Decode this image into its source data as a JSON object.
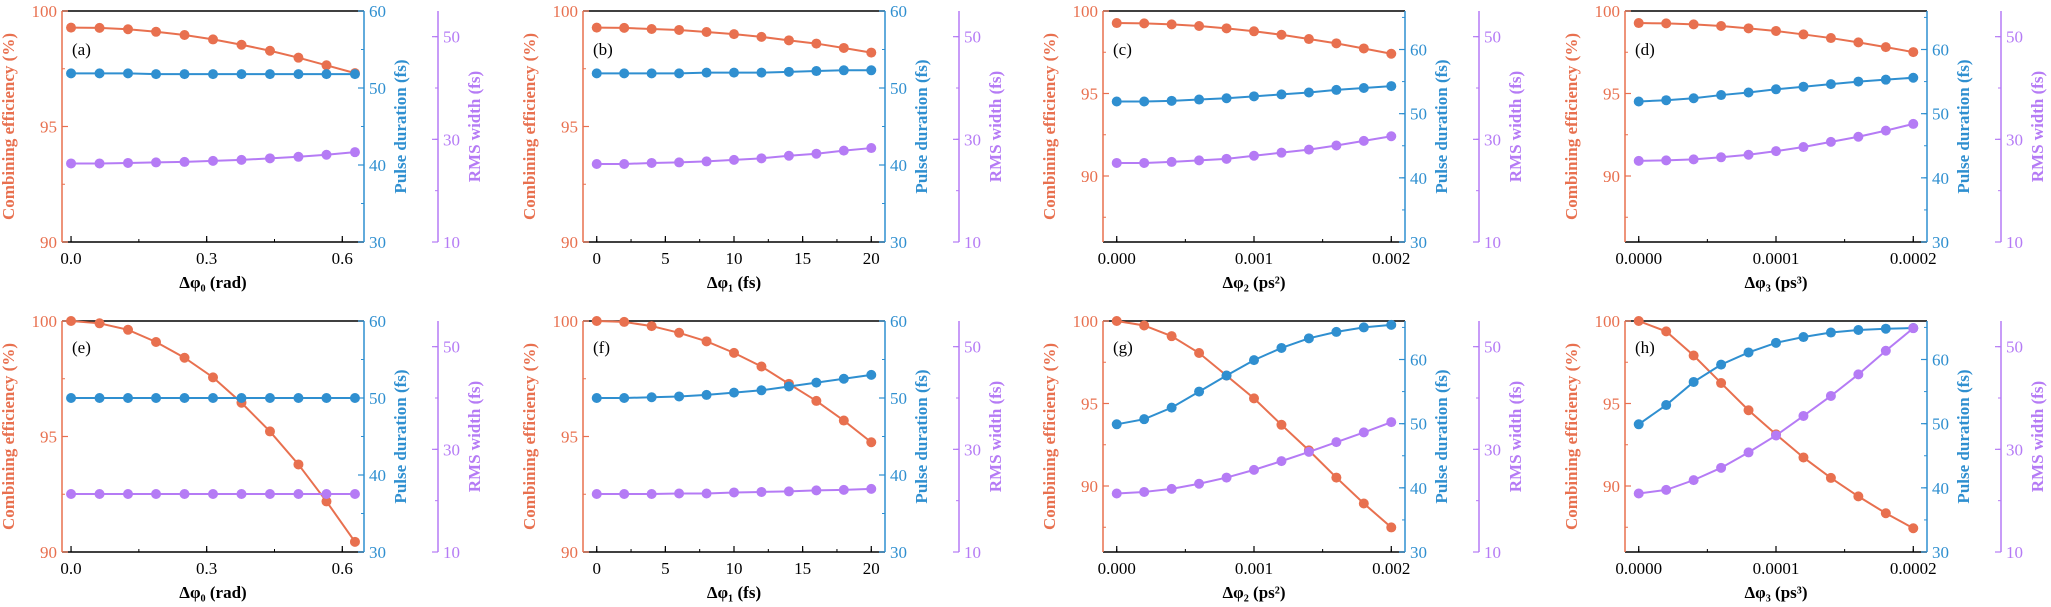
{
  "colors": {
    "efficiency": "#e8704f",
    "pulse": "#2f8fd0",
    "rms": "#b57bf5",
    "frame": "#000000"
  },
  "axis_titles": {
    "efficiency": "Combining efficiency (%)",
    "pulse": "Pulse duration (fs)",
    "rms": "RMS width (fs)"
  },
  "chart_data": [
    {
      "panel": "(a)",
      "type": "line",
      "xlabel": "Δφ₀ (rad)",
      "xlim": [
        -0.02,
        0.648
      ],
      "xticks": [
        "0.0",
        "0.3",
        "0.6"
      ],
      "xminor": 0.15,
      "x": [
        0,
        0.063,
        0.126,
        0.188,
        0.251,
        0.314,
        0.377,
        0.44,
        0.503,
        0.565,
        0.628
      ],
      "efficiency": {
        "ylim": [
          90,
          100
        ],
        "ticks": [
          "90",
          "95",
          "100"
        ],
        "minor": 2.5,
        "values": [
          99.28,
          99.27,
          99.21,
          99.1,
          98.96,
          98.77,
          98.54,
          98.28,
          97.98,
          97.65,
          97.31
        ]
      },
      "pulse": {
        "ylim": [
          30,
          60
        ],
        "ticks": [
          "30",
          "40",
          "50",
          "60"
        ],
        "minor": 5,
        "values": [
          51.9,
          51.9,
          51.9,
          51.8,
          51.8,
          51.8,
          51.8,
          51.8,
          51.8,
          51.8,
          51.8
        ]
      },
      "rms": {
        "ylim": [
          10,
          55
        ],
        "ticks": [
          "10",
          "30",
          "50"
        ],
        "minor": 10,
        "values": [
          25.3,
          25.3,
          25.4,
          25.5,
          25.6,
          25.8,
          26.0,
          26.3,
          26.6,
          27.0,
          27.5
        ]
      }
    },
    {
      "panel": "(b)",
      "type": "line",
      "xlabel": "Δφ₁ (fs)",
      "xlim": [
        -1,
        21
      ],
      "xticks": [
        "0",
        "5",
        "10",
        "15",
        "20"
      ],
      "xminor": 2.5,
      "x": [
        0,
        2,
        4,
        6,
        8,
        10,
        12,
        14,
        16,
        18,
        20
      ],
      "efficiency": {
        "ylim": [
          90,
          100
        ],
        "ticks": [
          "90",
          "95",
          "100"
        ],
        "minor": 2.5,
        "values": [
          99.28,
          99.27,
          99.22,
          99.18,
          99.09,
          99.0,
          98.88,
          98.73,
          98.59,
          98.4,
          98.2
        ]
      },
      "pulse": {
        "ylim": [
          30,
          60
        ],
        "ticks": [
          "30",
          "40",
          "50",
          "60"
        ],
        "minor": 5,
        "values": [
          51.9,
          51.9,
          51.9,
          51.9,
          52.0,
          52.0,
          52.0,
          52.1,
          52.2,
          52.3,
          52.3
        ]
      },
      "rms": {
        "ylim": [
          10,
          55
        ],
        "ticks": [
          "10",
          "30",
          "50"
        ],
        "minor": 10,
        "values": [
          25.2,
          25.2,
          25.4,
          25.5,
          25.7,
          26.0,
          26.3,
          26.8,
          27.2,
          27.8,
          28.3
        ]
      }
    },
    {
      "panel": "(c)",
      "type": "line",
      "xlabel": "Δφ₂ (ps²)",
      "xlim": [
        -0.0001,
        0.0021
      ],
      "xticks": [
        "0.000",
        "0.001",
        "0.002"
      ],
      "xminor": 0.0005,
      "x": [
        0,
        0.0002,
        0.0004,
        0.0006,
        0.0008,
        0.001,
        0.0012,
        0.0014,
        0.0016,
        0.0018,
        0.002
      ],
      "efficiency": {
        "ylim": [
          86,
          100
        ],
        "ticks": [
          "90",
          "95",
          "100"
        ],
        "minor": 2.5,
        "values": [
          99.27,
          99.25,
          99.19,
          99.09,
          98.95,
          98.77,
          98.56,
          98.3,
          98.04,
          97.73,
          97.41
        ]
      },
      "pulse": {
        "ylim": [
          30,
          66
        ],
        "ticks": [
          "30",
          "40",
          "50",
          "60"
        ],
        "minor": 5,
        "values": [
          51.9,
          51.9,
          52.0,
          52.2,
          52.4,
          52.7,
          53.0,
          53.3,
          53.7,
          54.0,
          54.3
        ]
      },
      "rms": {
        "ylim": [
          10,
          55
        ],
        "ticks": [
          "10",
          "30",
          "50"
        ],
        "minor": 10,
        "values": [
          25.4,
          25.4,
          25.6,
          25.9,
          26.2,
          26.8,
          27.4,
          28.0,
          28.8,
          29.7,
          30.6
        ]
      }
    },
    {
      "panel": "(d)",
      "type": "line",
      "xlabel": "Δφ₃ (ps³)",
      "xlim": [
        -1e-05,
        0.00021
      ],
      "xticks": [
        "0.0000",
        "0.0001",
        "0.0002"
      ],
      "xminor": 5e-05,
      "x": [
        0,
        2e-05,
        4e-05,
        6e-05,
        8e-05,
        0.0001,
        0.00012,
        0.00014,
        0.00016,
        0.00018,
        0.0002
      ],
      "efficiency": {
        "ylim": [
          86,
          100
        ],
        "ticks": [
          "90",
          "95",
          "100"
        ],
        "minor": 2.5,
        "values": [
          99.27,
          99.25,
          99.19,
          99.09,
          98.95,
          98.79,
          98.58,
          98.36,
          98.1,
          97.81,
          97.51
        ]
      },
      "pulse": {
        "ylim": [
          30,
          66
        ],
        "ticks": [
          "30",
          "40",
          "50",
          "60"
        ],
        "minor": 5,
        "values": [
          51.9,
          52.1,
          52.4,
          52.9,
          53.3,
          53.8,
          54.2,
          54.6,
          55.0,
          55.3,
          55.6
        ]
      },
      "rms": {
        "ylim": [
          10,
          55
        ],
        "ticks": [
          "10",
          "30",
          "50"
        ],
        "minor": 10,
        "values": [
          25.8,
          25.9,
          26.1,
          26.5,
          27.0,
          27.7,
          28.5,
          29.5,
          30.5,
          31.7,
          33.0
        ]
      }
    },
    {
      "panel": "(e)",
      "type": "line",
      "xlabel": "Δφ₀ (rad)",
      "xlim": [
        -0.02,
        0.648
      ],
      "xticks": [
        "0.0",
        "0.3",
        "0.6"
      ],
      "xminor": 0.15,
      "x": [
        0,
        0.063,
        0.126,
        0.188,
        0.251,
        0.314,
        0.377,
        0.44,
        0.503,
        0.565,
        0.628
      ],
      "efficiency": {
        "ylim": [
          90,
          100
        ],
        "ticks": [
          "90",
          "95",
          "100"
        ],
        "minor": 2.5,
        "values": [
          100,
          99.9,
          99.62,
          99.09,
          98.41,
          97.56,
          96.46,
          95.22,
          93.79,
          92.19,
          90.44
        ]
      },
      "pulse": {
        "ylim": [
          30,
          60
        ],
        "ticks": [
          "30",
          "40",
          "50",
          "60"
        ],
        "minor": 5,
        "values": [
          50,
          50,
          50,
          50,
          50,
          50,
          50,
          50,
          50,
          50,
          50
        ]
      },
      "rms": {
        "ylim": [
          10,
          55
        ],
        "ticks": [
          "10",
          "30",
          "50"
        ],
        "minor": 10,
        "values": [
          21.3,
          21.3,
          21.3,
          21.3,
          21.3,
          21.3,
          21.3,
          21.3,
          21.3,
          21.3,
          21.3
        ]
      }
    },
    {
      "panel": "(f)",
      "type": "line",
      "xlabel": "Δφ₁ (fs)",
      "xlim": [
        -1,
        21
      ],
      "xticks": [
        "0",
        "5",
        "10",
        "15",
        "20"
      ],
      "xminor": 2.5,
      "x": [
        0,
        2,
        4,
        6,
        8,
        10,
        12,
        14,
        16,
        18,
        20
      ],
      "efficiency": {
        "ylim": [
          90,
          100
        ],
        "ticks": [
          "90",
          "95",
          "100"
        ],
        "minor": 2.5,
        "values": [
          100,
          99.96,
          99.78,
          99.49,
          99.12,
          98.62,
          98.03,
          97.28,
          96.54,
          95.69,
          94.75
        ]
      },
      "pulse": {
        "ylim": [
          30,
          60
        ],
        "ticks": [
          "30",
          "40",
          "50",
          "60"
        ],
        "minor": 5,
        "values": [
          50,
          50,
          50.1,
          50.2,
          50.4,
          50.7,
          51.0,
          51.5,
          52.0,
          52.5,
          53.0
        ]
      },
      "rms": {
        "ylim": [
          10,
          55
        ],
        "ticks": [
          "10",
          "30",
          "50"
        ],
        "minor": 10,
        "values": [
          21.3,
          21.3,
          21.3,
          21.4,
          21.4,
          21.6,
          21.7,
          21.8,
          22.0,
          22.1,
          22.3
        ]
      }
    },
    {
      "panel": "(g)",
      "type": "line",
      "xlabel": "Δφ₂ (ps²)",
      "xlim": [
        -0.0001,
        0.0021
      ],
      "xticks": [
        "0.000",
        "0.001",
        "0.002"
      ],
      "xminor": 0.0005,
      "x": [
        0,
        0.0002,
        0.0004,
        0.0006,
        0.0008,
        0.001,
        0.0012,
        0.0014,
        0.0016,
        0.0018,
        0.002
      ],
      "efficiency": {
        "ylim": [
          86,
          100
        ],
        "ticks": [
          "90",
          "95",
          "100"
        ],
        "minor": 2.5,
        "values": [
          100,
          99.73,
          99.08,
          98.06,
          96.69,
          95.31,
          93.71,
          92.16,
          90.51,
          88.94,
          87.49
        ]
      },
      "pulse": {
        "ylim": [
          30,
          66
        ],
        "ticks": [
          "30",
          "40",
          "50",
          "60"
        ],
        "minor": 5,
        "values": [
          49.9,
          50.7,
          52.5,
          55.0,
          57.5,
          59.9,
          61.8,
          63.3,
          64.3,
          65.0,
          65.4
        ]
      },
      "rms": {
        "ylim": [
          10,
          55
        ],
        "ticks": [
          "10",
          "30",
          "50"
        ],
        "minor": 10,
        "values": [
          21.4,
          21.7,
          22.3,
          23.3,
          24.5,
          26.0,
          27.7,
          29.5,
          31.4,
          33.3,
          35.3
        ]
      }
    },
    {
      "panel": "(h)",
      "type": "line",
      "xlabel": "Δφ₃ (ps³)",
      "xlim": [
        -1e-05,
        0.00021
      ],
      "xticks": [
        "0.0000",
        "0.0001",
        "0.0002"
      ],
      "xminor": 5e-05,
      "x": [
        0,
        2e-05,
        4e-05,
        6e-05,
        8e-05,
        0.0001,
        0.00012,
        0.00014,
        0.00016,
        0.00018,
        0.0002
      ],
      "efficiency": {
        "ylim": [
          86,
          100
        ],
        "ticks": [
          "90",
          "95",
          "100"
        ],
        "minor": 2.5,
        "values": [
          100,
          99.37,
          97.91,
          96.24,
          94.59,
          93.13,
          91.73,
          90.49,
          89.37,
          88.35,
          87.44
        ]
      },
      "pulse": {
        "ylim": [
          30,
          66
        ],
        "ticks": [
          "30",
          "40",
          "50",
          "60"
        ],
        "minor": 5,
        "values": [
          49.9,
          52.9,
          56.5,
          59.2,
          61.1,
          62.6,
          63.5,
          64.2,
          64.6,
          64.8,
          64.9
        ]
      },
      "rms": {
        "ylim": [
          10,
          55
        ],
        "ticks": [
          "10",
          "30",
          "50"
        ],
        "minor": 10,
        "values": [
          21.4,
          22.1,
          24.0,
          26.4,
          29.4,
          32.7,
          36.5,
          40.4,
          44.6,
          49.2,
          53.6
        ]
      }
    }
  ]
}
